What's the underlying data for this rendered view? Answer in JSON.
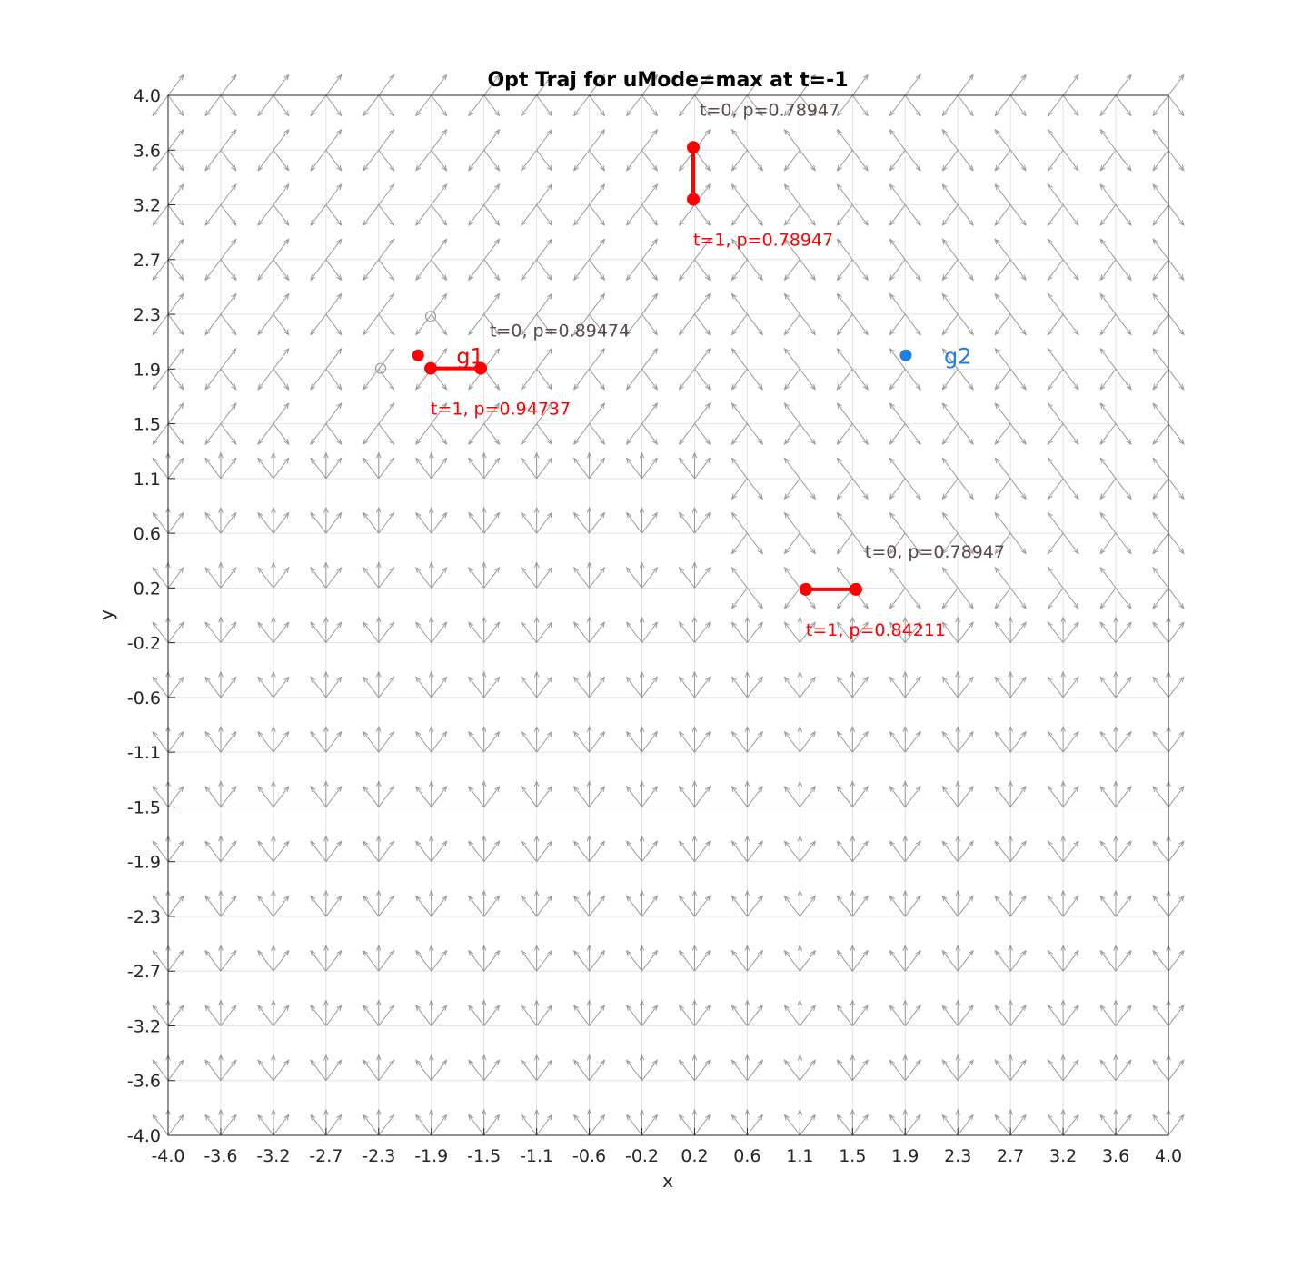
{
  "chart_data": {
    "type": "scatter",
    "title": "Opt Traj for uMode=max at t=-1",
    "xlabel": "x",
    "ylabel": "y",
    "xlim": [
      -4.0,
      4.0
    ],
    "ylim": [
      -4.0,
      4.0
    ],
    "grid": true,
    "x_tick_labels": [
      "-4.0",
      "-3.6",
      "-3.2",
      "-2.7",
      "-2.3",
      "-1.9",
      "-1.5",
      "-1.1",
      "-0.6",
      "-0.2",
      "0.2",
      "0.6",
      "1.1",
      "1.5",
      "1.9",
      "2.3",
      "2.7",
      "3.2",
      "3.6",
      "4.0"
    ],
    "y_tick_labels": [
      "4.0",
      "3.6",
      "3.2",
      "2.7",
      "2.3",
      "1.9",
      "1.5",
      "1.1",
      "0.6",
      "0.2",
      "-0.2",
      "-0.6",
      "-1.1",
      "-1.5",
      "-1.9",
      "-2.3",
      "-2.7",
      "-3.2",
      "-3.6",
      "-4.0"
    ],
    "colors": {
      "trajectory": "#ff0000",
      "t0_label": "#5a4a4a",
      "t1_label": "#ff0000",
      "goal_g1": "#ff0000",
      "goal_g2": "#1f7fe0",
      "vector_field": "#9a9a9a",
      "grid": "#e3e3e3"
    },
    "goals": [
      {
        "name": "g1",
        "x": -2.0,
        "y": 2.0,
        "color": "#ff0000"
      },
      {
        "name": "g2",
        "x": 1.9,
        "y": 2.0,
        "color": "#1f7fe0"
      }
    ],
    "hollow_markers": [
      {
        "x": -1.9,
        "y": 2.3
      },
      {
        "x": -2.3,
        "y": 1.9
      }
    ],
    "trajectories": [
      {
        "start": {
          "x": 0.2,
          "y": 3.6
        },
        "end": {
          "x": 0.2,
          "y": 3.2
        },
        "t0_label": "t=0, p=0.78947",
        "t1_label": "t=1, p=0.78947"
      },
      {
        "start": {
          "x": -1.5,
          "y": 1.9
        },
        "end": {
          "x": -1.9,
          "y": 1.9
        },
        "t0_label": "t=0, p=0.89474",
        "t1_label": "t=1, p=0.94737"
      },
      {
        "start": {
          "x": 1.5,
          "y": 0.2
        },
        "end": {
          "x": 1.1,
          "y": 0.2
        },
        "t0_label": "t=0, p=0.78947",
        "t1_label": "t=1, p=0.84211"
      }
    ]
  }
}
